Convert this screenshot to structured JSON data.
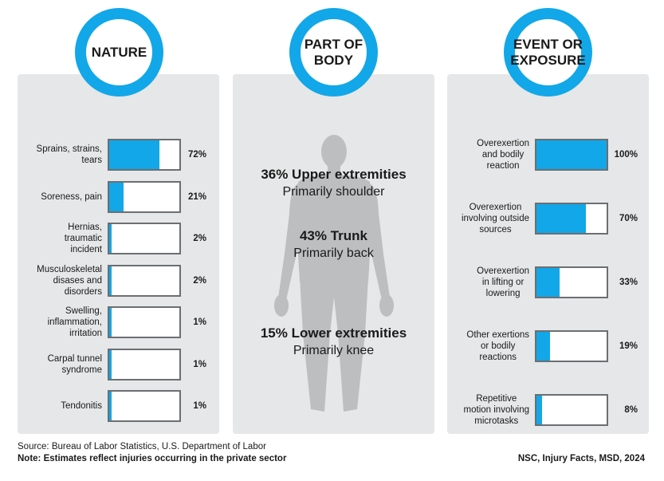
{
  "colors": {
    "accent": "#12a7e8",
    "panel": "#e6e7e8",
    "box_border": "#6d6e71"
  },
  "nature": {
    "title": "NATURE",
    "items": [
      {
        "label": "Sprains, strains,\ntears",
        "value_text": "72%",
        "fill": 0.72
      },
      {
        "label": "Soreness, pain",
        "value_text": "21%",
        "fill": 0.21
      },
      {
        "label": "Hernias,\ntraumatic\nincident",
        "value_text": "2%",
        "fill": 0.02
      },
      {
        "label": "Musculoskeletal\ndisases and\ndisorders",
        "value_text": "2%",
        "fill": 0.02
      },
      {
        "label": "Swelling,\ninflammation,\nirritation",
        "value_text": "1%",
        "fill": 0.01
      },
      {
        "label": "Carpal tunnel\nsyndrome",
        "value_text": "1%",
        "fill": 0.01
      },
      {
        "label": "Tendonitis",
        "value_text": "1%",
        "fill": 0.01
      }
    ]
  },
  "body": {
    "title": "PART OF\nBODY",
    "stats": [
      {
        "headline": "36% Upper extremities",
        "detail": "Primarily shoulder"
      },
      {
        "headline": "43% Trunk",
        "detail": "Primarily back"
      },
      {
        "headline": "15% Lower extremities",
        "detail": "Primarily knee"
      }
    ]
  },
  "event": {
    "title": "EVENT OR\nEXPOSURE",
    "items": [
      {
        "label": "Overexertion\nand bodily\nreaction",
        "value_text": "100%",
        "fill": 1.0
      },
      {
        "label": "Overexertion\ninvolving outside\nsources",
        "value_text": "70%",
        "fill": 0.7
      },
      {
        "label": "Overexertion\nin lifting or\nlowering",
        "value_text": "33%",
        "fill": 0.33
      },
      {
        "label": "Other exertions\nor bodily\nreactions",
        "value_text": "19%",
        "fill": 0.19
      },
      {
        "label": "Repetitive\nmotion involving\nmicrotasks",
        "value_text": "8%",
        "fill": 0.08
      }
    ]
  },
  "footer": {
    "source": "Source: Bureau of Labor Statistics, U.S. Department of Labor",
    "note": "Note: Estimates reflect injuries occurring in the private sector",
    "credit": "NSC, Injury Facts, MSD, 2024"
  },
  "chart_data": [
    {
      "type": "bar",
      "title": "NATURE",
      "categories": [
        "Sprains, strains, tears",
        "Soreness, pain",
        "Hernias, traumatic incident",
        "Musculoskeletal disases and disorders",
        "Swelling, inflammation, irritation",
        "Carpal tunnel syndrome",
        "Tendonitis"
      ],
      "values": [
        72,
        21,
        2,
        2,
        1,
        1,
        1
      ]
    },
    {
      "type": "bar",
      "title": "EVENT OR EXPOSURE",
      "categories": [
        "Overexertion and bodily reaction",
        "Overexertion involving outside sources",
        "Overexertion in lifting or lowering",
        "Other exertions or bodily reactions",
        "Repetitive motion involving microtasks"
      ],
      "values": [
        100,
        70,
        33,
        19,
        8
      ]
    }
  ]
}
